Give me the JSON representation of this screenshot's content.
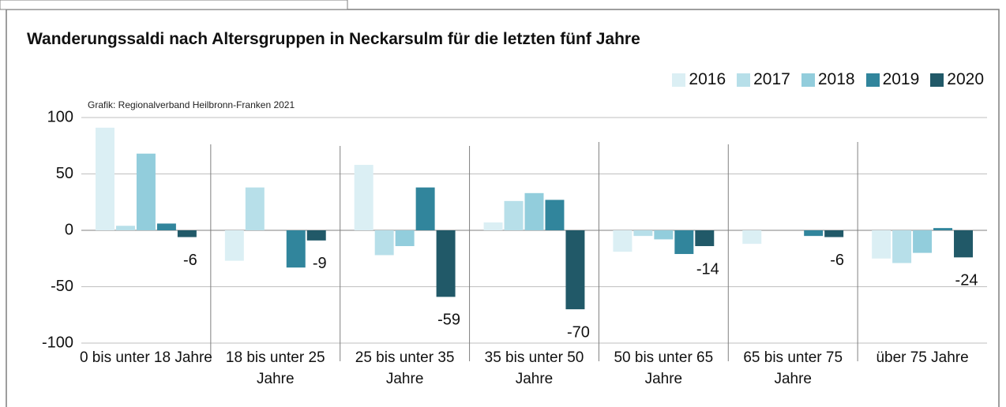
{
  "chart_data": {
    "type": "bar",
    "title": "Wanderungssaldi nach Altersgruppen in Neckarsulm für die letzten fünf Jahre",
    "subtitle": "Grafik: Regionalverband Heilbronn-Franken 2021",
    "categories": [
      "0 bis unter 18 Jahre",
      "18 bis unter 25 Jahre",
      "25 bis unter 35 Jahre",
      "35 bis unter 50 Jahre",
      "50 bis unter 65 Jahre",
      "65 bis unter 75 Jahre",
      "über 75 Jahre"
    ],
    "series": [
      {
        "name": "2016",
        "color": "#dbeff4",
        "values": [
          91,
          -27,
          58,
          7,
          -19,
          -12,
          -25
        ]
      },
      {
        "name": "2017",
        "color": "#b7dfe9",
        "values": [
          4,
          38,
          -22,
          26,
          -5,
          0,
          -29
        ]
      },
      {
        "name": "2018",
        "color": "#92cddc",
        "values": [
          68,
          0,
          -14,
          33,
          -8,
          0,
          -20
        ]
      },
      {
        "name": "2019",
        "color": "#31859c",
        "values": [
          6,
          -33,
          38,
          27,
          -21,
          -5,
          2
        ]
      },
      {
        "name": "2020",
        "color": "#215968",
        "values": [
          -6,
          -9,
          -59,
          -70,
          -14,
          -6,
          -24
        ],
        "data_labels": true
      }
    ],
    "ylim": [
      -100,
      100
    ],
    "yticks": [
      -100,
      -50,
      0,
      50,
      100
    ],
    "grid": true,
    "legend": "top-right"
  }
}
